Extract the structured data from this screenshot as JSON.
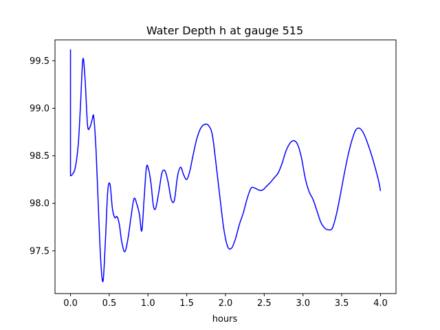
{
  "chart_data": {
    "type": "line",
    "title": "Water Depth h at gauge 515",
    "xlabel": "hours",
    "ylabel": "",
    "xlim": [
      -0.2,
      4.2
    ],
    "ylim": [
      97.05,
      99.72
    ],
    "grid": false,
    "x_ticks": [
      0.0,
      0.5,
      1.0,
      1.5,
      2.0,
      2.5,
      3.0,
      3.5,
      4.0
    ],
    "x_tick_labels": [
      "0.0",
      "0.5",
      "1.0",
      "1.5",
      "2.0",
      "2.5",
      "3.0",
      "3.5",
      "4.0"
    ],
    "y_ticks": [
      97.5,
      98.0,
      98.5,
      99.0,
      99.5
    ],
    "y_tick_labels": [
      "97.5",
      "98.0",
      "98.5",
      "99.0",
      "99.5"
    ],
    "series": [
      {
        "color": "#0000ff",
        "x": [
          0.0,
          0.0,
          0.02,
          0.06,
          0.1,
          0.13,
          0.16,
          0.19,
          0.22,
          0.25,
          0.28,
          0.3,
          0.33,
          0.36,
          0.39,
          0.42,
          0.45,
          0.48,
          0.51,
          0.54,
          0.57,
          0.6,
          0.63,
          0.66,
          0.7,
          0.74,
          0.78,
          0.82,
          0.86,
          0.89,
          0.92,
          0.95,
          0.98,
          1.01,
          1.04,
          1.07,
          1.1,
          1.14,
          1.18,
          1.22,
          1.26,
          1.3,
          1.34,
          1.38,
          1.42,
          1.46,
          1.5,
          1.54,
          1.58,
          1.63,
          1.68,
          1.73,
          1.78,
          1.83,
          1.88,
          1.93,
          1.98,
          2.03,
          2.08,
          2.13,
          2.18,
          2.23,
          2.28,
          2.33,
          2.38,
          2.43,
          2.48,
          2.53,
          2.58,
          2.63,
          2.68,
          2.73,
          2.78,
          2.83,
          2.88,
          2.93,
          2.98,
          3.03,
          3.08,
          3.13,
          3.18,
          3.23,
          3.28,
          3.33,
          3.38,
          3.43,
          3.48,
          3.53,
          3.58,
          3.63,
          3.68,
          3.73,
          3.78,
          3.83,
          3.88,
          3.93,
          3.98,
          4.0
        ],
        "y": [
          99.62,
          98.29,
          98.3,
          98.37,
          98.62,
          99.05,
          99.52,
          99.28,
          98.82,
          98.8,
          98.88,
          98.91,
          98.55,
          97.95,
          97.4,
          97.18,
          97.6,
          98.12,
          98.2,
          97.95,
          97.85,
          97.86,
          97.78,
          97.6,
          97.49,
          97.62,
          97.85,
          98.05,
          97.98,
          97.88,
          97.71,
          98.05,
          98.38,
          98.35,
          98.2,
          97.97,
          97.95,
          98.12,
          98.32,
          98.34,
          98.22,
          98.04,
          98.03,
          98.28,
          98.38,
          98.3,
          98.25,
          98.34,
          98.5,
          98.68,
          98.79,
          98.83,
          98.82,
          98.72,
          98.4,
          98.05,
          97.72,
          97.54,
          97.53,
          97.63,
          97.78,
          97.9,
          98.05,
          98.16,
          98.16,
          98.14,
          98.14,
          98.18,
          98.22,
          98.27,
          98.32,
          98.42,
          98.55,
          98.63,
          98.66,
          98.62,
          98.48,
          98.26,
          98.12,
          98.04,
          97.92,
          97.8,
          97.74,
          97.72,
          97.74,
          97.88,
          98.08,
          98.3,
          98.5,
          98.66,
          98.77,
          98.79,
          98.74,
          98.64,
          98.52,
          98.38,
          98.22,
          98.13
        ]
      }
    ]
  }
}
